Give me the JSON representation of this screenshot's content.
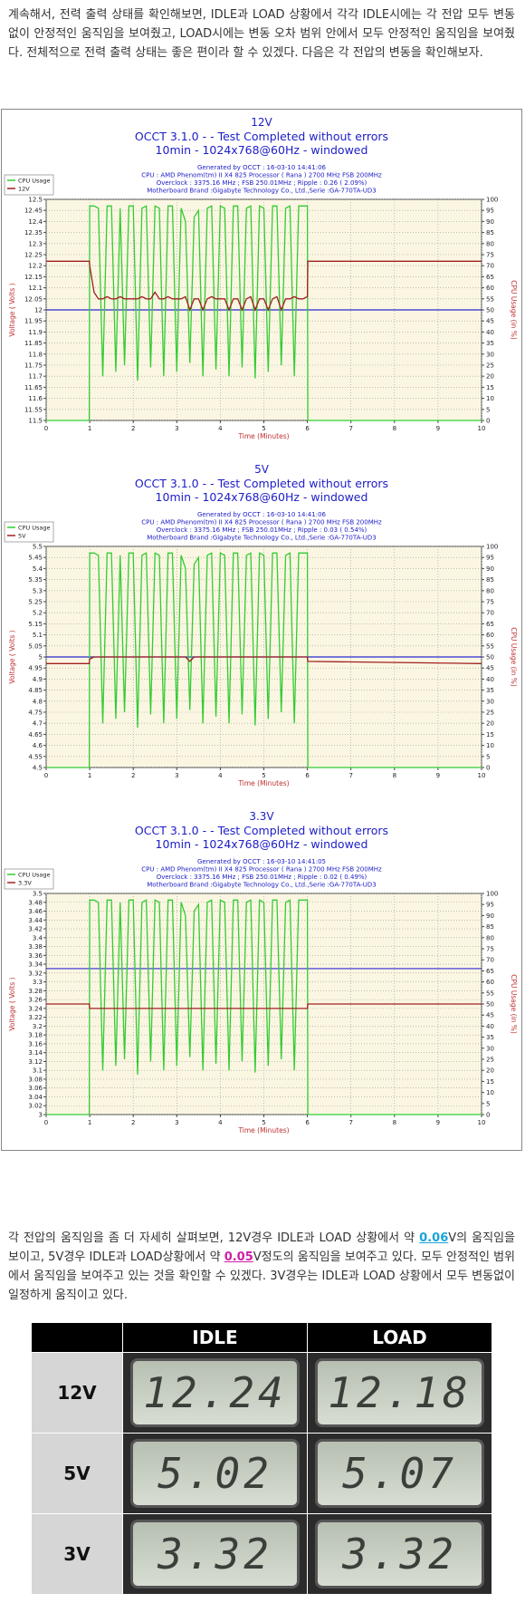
{
  "intro": "계속해서, 전력 출력 상태를 확인해보면, IDLE과 LOAD 상황에서 각각 IDLE시에는 각 전압 모두 변동 없이 안정적인 움직임을 보여줬고, LOAD시에는 변동 오차 범위 안에서 모두 안정적인 움직임을 보여줬다. 전체적으로 전력 출력 상태는 좋은 편이라 할 수 있겠다. 다음은 각 전압의 변동을 확인해보자.",
  "chart_data": [
    {
      "type": "line",
      "title": "12V",
      "subtitle": [
        "OCCT 3.1.0 -  - Test Completed without errors",
        "10min - 1024x768@60Hz - windowed"
      ],
      "info": [
        "Generated by OCCT : 16-03-10 14:41:06",
        "CPU : AMD Phenom(tm) II X4 825 Processor ( Rana ) 2700 MHz FSB 200MHz",
        "Overclock : 3375.16 MHz ; FSB 250.01MHz ; Ripple : 0.26 ( 2.09%)",
        "Motherboard Brand :Gigabyte Technology Co., Ltd.,Serie :GA-770TA-UD3"
      ],
      "xlabel": "Time (Minutes)",
      "ylabel": "Voltage ( Volts )",
      "y2label": "CPU Usage (in %)",
      "grid": true,
      "legend": "top-left",
      "hline": 12,
      "hline_color": "#2a2ad0",
      "xlim": [
        0,
        10
      ],
      "xticks": [
        0,
        1,
        2,
        3,
        4,
        5,
        6,
        7,
        8,
        9,
        10
      ],
      "ylim": [
        11.5,
        12.5
      ],
      "yticks": [
        11.5,
        11.55,
        11.6,
        11.65,
        11.7,
        11.75,
        11.8,
        11.85,
        11.9,
        11.95,
        12,
        12.05,
        12.1,
        12.15,
        12.2,
        12.25,
        12.3,
        12.35,
        12.4,
        12.45,
        12.5
      ],
      "y2lim": [
        0,
        100
      ],
      "y2ticks": [
        0,
        5,
        10,
        15,
        20,
        25,
        30,
        35,
        40,
        45,
        50,
        55,
        60,
        65,
        70,
        75,
        80,
        85,
        90,
        95,
        100
      ],
      "x": [
        0,
        0.99,
        1,
        1.1,
        1.2,
        1.3,
        1.4,
        1.5,
        1.6,
        1.7,
        1.8,
        1.9,
        2,
        2.1,
        2.2,
        2.3,
        2.4,
        2.5,
        2.6,
        2.7,
        2.8,
        2.9,
        3,
        3.1,
        3.2,
        3.3,
        3.4,
        3.5,
        3.6,
        3.7,
        3.8,
        3.9,
        4,
        4.1,
        4.2,
        4.3,
        4.4,
        4.5,
        4.6,
        4.7,
        4.8,
        4.9,
        5,
        5.1,
        5.2,
        5.3,
        5.4,
        5.5,
        5.6,
        5.7,
        5.8,
        5.9,
        6,
        6.01,
        10
      ],
      "series": [
        {
          "name": "CPU Usage",
          "color": "#33cc33",
          "axis": "y2",
          "values": [
            0,
            0,
            97,
            97,
            96,
            20,
            97,
            97,
            22,
            96,
            25,
            97,
            97,
            18,
            96,
            97,
            24,
            97,
            96,
            20,
            97,
            97,
            22,
            96,
            90,
            26,
            92,
            95,
            20,
            96,
            97,
            23,
            97,
            96,
            20,
            97,
            97,
            24,
            96,
            97,
            19,
            97,
            96,
            22,
            97,
            97,
            25,
            96,
            97,
            20,
            97,
            97,
            97,
            0,
            0
          ]
        },
        {
          "name": "12V",
          "color": "#a02020",
          "values": [
            12.22,
            12.22,
            12.2,
            12.08,
            12.05,
            12.05,
            12.06,
            12.05,
            12.05,
            12.06,
            12.05,
            12.05,
            12.05,
            12.05,
            12.06,
            12.05,
            12.05,
            12.08,
            12.05,
            12.05,
            12.06,
            12.05,
            12.05,
            12.05,
            12.06,
            12,
            12.05,
            12.05,
            12,
            12.05,
            12.06,
            12.05,
            12.05,
            12.05,
            12,
            12.05,
            12.05,
            12,
            12.05,
            12.06,
            12,
            12.05,
            12.05,
            12,
            12.05,
            12.06,
            12,
            12.05,
            12.05,
            12.06,
            12.05,
            12.05,
            12.06,
            12.22,
            12.22
          ]
        }
      ]
    },
    {
      "type": "line",
      "title": "5V",
      "subtitle": [
        "OCCT 3.1.0 -  - Test Completed without errors",
        "10min - 1024x768@60Hz - windowed"
      ],
      "info": [
        "Generated by OCCT : 16-03-10 14:41:06",
        "CPU : AMD Phenom(tm) II X4 825 Processor ( Rana ) 2700 MHz FSB 200MHz",
        "Overclock : 3375.16 MHz ; FSB 250.01MHz ; Ripple : 0.03 ( 0.54%)",
        "Motherboard Brand :Gigabyte Technology Co., Ltd.,Serie :GA-770TA-UD3"
      ],
      "xlabel": "Time (Minutes)",
      "ylabel": "Voltage ( Volts )",
      "y2label": "CPU Usage (in %)",
      "grid": true,
      "legend": "top-left",
      "hline": 5,
      "hline_color": "#2a2ad0",
      "xlim": [
        0,
        10
      ],
      "xticks": [
        0,
        1,
        2,
        3,
        4,
        5,
        6,
        7,
        8,
        9,
        10
      ],
      "ylim": [
        4.5,
        5.5
      ],
      "yticks": [
        4.5,
        4.55,
        4.6,
        4.65,
        4.7,
        4.75,
        4.8,
        4.85,
        4.9,
        4.95,
        5,
        5.05,
        5.1,
        5.15,
        5.2,
        5.25,
        5.3,
        5.35,
        5.4,
        5.45,
        5.5
      ],
      "y2lim": [
        0,
        100
      ],
      "y2ticks": [
        0,
        5,
        10,
        15,
        20,
        25,
        30,
        35,
        40,
        45,
        50,
        55,
        60,
        65,
        70,
        75,
        80,
        85,
        90,
        95,
        100
      ],
      "x": [
        0,
        0.99,
        1,
        1.1,
        1.2,
        1.3,
        1.4,
        1.5,
        1.6,
        1.7,
        1.8,
        1.9,
        2,
        2.1,
        2.2,
        2.3,
        2.4,
        2.5,
        2.6,
        2.7,
        2.8,
        2.9,
        3,
        3.1,
        3.2,
        3.3,
        3.4,
        3.5,
        3.6,
        3.7,
        3.8,
        3.9,
        4,
        4.1,
        4.2,
        4.3,
        4.4,
        4.5,
        4.6,
        4.7,
        4.8,
        4.9,
        5,
        5.1,
        5.2,
        5.3,
        5.4,
        5.5,
        5.6,
        5.7,
        5.8,
        5.9,
        6,
        6.01,
        10
      ],
      "series": [
        {
          "name": "CPU Usage",
          "color": "#33cc33",
          "axis": "y2",
          "values": [
            0,
            0,
            97,
            97,
            96,
            20,
            97,
            97,
            22,
            96,
            25,
            97,
            97,
            18,
            96,
            97,
            24,
            97,
            96,
            20,
            97,
            97,
            22,
            96,
            90,
            26,
            92,
            95,
            20,
            96,
            97,
            23,
            97,
            96,
            20,
            97,
            97,
            24,
            96,
            97,
            19,
            97,
            96,
            22,
            97,
            97,
            25,
            96,
            97,
            20,
            97,
            97,
            97,
            0,
            0
          ]
        },
        {
          "name": "5V",
          "color": "#a02020",
          "values": [
            4.97,
            4.97,
            4.99,
            5,
            5,
            5,
            5,
            5,
            5,
            5,
            5,
            5,
            5,
            5,
            5,
            5,
            5,
            5,
            5,
            5,
            5,
            5,
            5,
            5,
            5,
            4.98,
            5,
            5,
            5,
            5,
            5,
            5,
            5,
            5,
            5,
            5,
            5,
            5,
            5,
            5,
            5,
            5,
            5,
            5,
            5,
            5,
            5,
            5,
            5,
            5,
            5,
            5,
            5,
            4.98,
            4.97
          ]
        }
      ]
    },
    {
      "type": "line",
      "title": "3.3V",
      "subtitle": [
        "OCCT 3.1.0 -  - Test Completed without errors",
        "10min - 1024x768@60Hz - windowed"
      ],
      "info": [
        "Generated by OCCT : 16-03-10 14:41:05",
        "CPU : AMD Phenom(tm) II X4 825 Processor ( Rana ) 2700 MHz FSB 200MHz",
        "Overclock : 3375.16 MHz ; FSB 250.01MHz ; Ripple : 0.02 ( 0.49%)",
        "Motherboard Brand :Gigabyte Technology Co., Ltd.,Serie :GA-770TA-UD3"
      ],
      "xlabel": "Time (Minutes)",
      "ylabel": "Voltage ( Volts )",
      "y2label": "CPU Usage (in %)",
      "grid": true,
      "legend": "top-left",
      "hline": 3.33,
      "hline_color": "#2a2ad0",
      "xlim": [
        0,
        10
      ],
      "xticks": [
        0,
        1,
        2,
        3,
        4,
        5,
        6,
        7,
        8,
        9,
        10
      ],
      "ylim": [
        3,
        3.5
      ],
      "yticks": [
        3,
        3.02,
        3.04,
        3.06,
        3.08,
        3.1,
        3.12,
        3.14,
        3.16,
        3.18,
        3.2,
        3.22,
        3.24,
        3.26,
        3.28,
        3.3,
        3.32,
        3.34,
        3.36,
        3.38,
        3.4,
        3.42,
        3.44,
        3.46,
        3.48,
        3.5
      ],
      "y2lim": [
        0,
        100
      ],
      "y2ticks": [
        0,
        5,
        10,
        15,
        20,
        25,
        30,
        35,
        40,
        45,
        50,
        55,
        60,
        65,
        70,
        75,
        80,
        85,
        90,
        95,
        100
      ],
      "x": [
        0,
        0.99,
        1,
        1.1,
        1.2,
        1.3,
        1.4,
        1.5,
        1.6,
        1.7,
        1.8,
        1.9,
        2,
        2.1,
        2.2,
        2.3,
        2.4,
        2.5,
        2.6,
        2.7,
        2.8,
        2.9,
        3,
        3.1,
        3.2,
        3.3,
        3.4,
        3.5,
        3.6,
        3.7,
        3.8,
        3.9,
        4,
        4.1,
        4.2,
        4.3,
        4.4,
        4.5,
        4.6,
        4.7,
        4.8,
        4.9,
        5,
        5.1,
        5.2,
        5.3,
        5.4,
        5.5,
        5.6,
        5.7,
        5.8,
        5.9,
        6,
        6.01,
        10
      ],
      "series": [
        {
          "name": "CPU Usage",
          "color": "#33cc33",
          "axis": "y2",
          "values": [
            0,
            0,
            97,
            97,
            96,
            20,
            97,
            97,
            22,
            96,
            25,
            97,
            97,
            18,
            96,
            97,
            24,
            97,
            96,
            20,
            97,
            97,
            22,
            96,
            90,
            26,
            92,
            95,
            20,
            96,
            97,
            23,
            97,
            96,
            20,
            97,
            97,
            24,
            96,
            97,
            19,
            97,
            96,
            22,
            97,
            97,
            25,
            96,
            97,
            20,
            97,
            97,
            97,
            0,
            0
          ]
        },
        {
          "name": "3.3V",
          "color": "#a02020",
          "values": [
            3.25,
            3.25,
            3.24,
            3.24,
            3.24,
            3.24,
            3.24,
            3.24,
            3.24,
            3.24,
            3.24,
            3.24,
            3.24,
            3.24,
            3.24,
            3.24,
            3.24,
            3.24,
            3.24,
            3.24,
            3.24,
            3.24,
            3.24,
            3.24,
            3.24,
            3.24,
            3.24,
            3.24,
            3.24,
            3.24,
            3.24,
            3.24,
            3.24,
            3.24,
            3.24,
            3.24,
            3.24,
            3.24,
            3.24,
            3.24,
            3.24,
            3.24,
            3.24,
            3.24,
            3.24,
            3.24,
            3.24,
            3.24,
            3.24,
            3.24,
            3.24,
            3.24,
            3.24,
            3.25,
            3.25
          ]
        }
      ]
    }
  ],
  "detail": {
    "segments": [
      "각 전압의 움직임을 좀 더 자세히 살펴보면, 12V경우 IDLE과 LOAD 상황에서 약 ",
      "0.06",
      "V의 움직임을 보이고, 5V경우 IDLE과 LOAD상황에서 약 ",
      "0.05",
      "V정도의 움직임을 보여주고 있다. 모두 안정적인 범위에서 움직임을 보여주고 있는 것을 확인할 수 있겠다. 3V경우는 IDLE과 LOAD 상황에서 모두 변동없이 일정하게 움직이고 있다."
    ]
  },
  "table": {
    "header": [
      "IDLE",
      "LOAD"
    ],
    "rows": [
      {
        "label": "12V",
        "values": [
          "12.24",
          "12.18"
        ]
      },
      {
        "label": "5V",
        "values": [
          "5.02",
          "5.07"
        ]
      },
      {
        "label": "3V",
        "values": [
          "3.32",
          "3.32"
        ]
      }
    ]
  }
}
